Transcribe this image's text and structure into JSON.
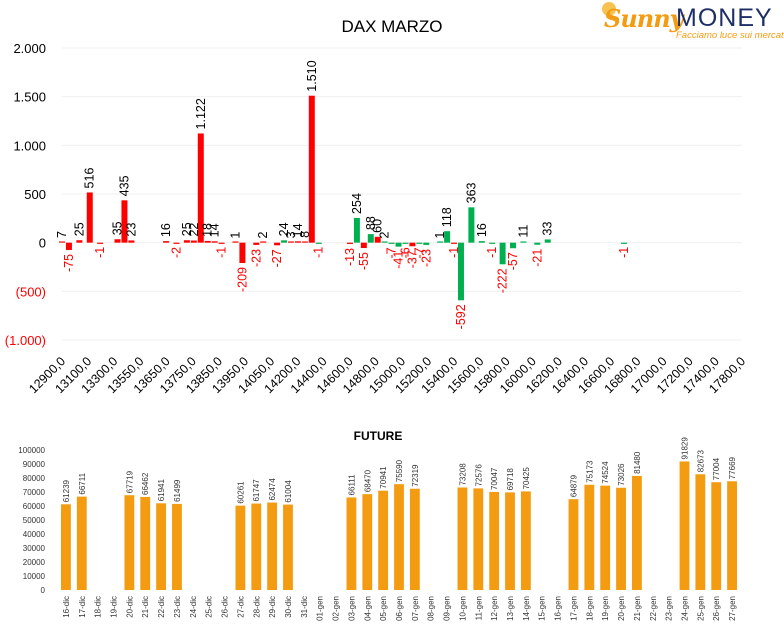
{
  "logo": {
    "sunny": "Sunny",
    "money": "MONEY",
    "tagline": "Facciamo luce sui mercati"
  },
  "colors": {
    "positive": "#00b050",
    "negative": "#ff0000",
    "future_bar": "#f39c12",
    "axis_text": "#000000"
  },
  "chart_data": [
    {
      "type": "bar",
      "title": "DAX MARZO",
      "xlabel": "",
      "ylabel": "",
      "ylim": [
        -1000,
        2000
      ],
      "yticks": [
        2000,
        1500,
        1000,
        500,
        0,
        -500,
        -1000
      ],
      "ytick_labels": [
        "2.000",
        "1.500",
        "1.000",
        "500",
        "0",
        "(500)",
        "(1.000)"
      ],
      "grid": true,
      "x_tick_labels": [
        "12900,0",
        "13100,0",
        "13300,0",
        "13550,0",
        "13650,0",
        "13750,0",
        "13850,0",
        "13950,0",
        "14050,0",
        "14200,0",
        "14400,0",
        "14600,0",
        "14800,0",
        "15000,0",
        "15200,0",
        "15400,0",
        "15600,0",
        "15800,0",
        "16000,0",
        "16200,0",
        "16400,0",
        "16600,0",
        "16800,0",
        "17000,0",
        "17200,0",
        "17400,0",
        "17800,0"
      ],
      "x_min": 12900,
      "x_max": 17800,
      "series": [
        {
          "values": [
            {
              "x": 12900,
              "v": 7,
              "c": "red"
            },
            {
              "x": 12950,
              "v": -75,
              "c": "red"
            },
            {
              "x": 13025,
              "v": 25,
              "c": "red"
            },
            {
              "x": 13100,
              "v": 516,
              "c": "red"
            },
            {
              "x": 13175,
              "v": -1,
              "c": "red"
            },
            {
              "x": 13300,
              "v": 35,
              "c": "red"
            },
            {
              "x": 13350,
              "v": 435,
              "c": "red"
            },
            {
              "x": 13400,
              "v": 23,
              "c": "red"
            },
            {
              "x": 13650,
              "v": 16,
              "c": "red"
            },
            {
              "x": 13725,
              "v": -2,
              "c": "red"
            },
            {
              "x": 13800,
              "v": 25,
              "c": "red"
            },
            {
              "x": 13850,
              "v": 22,
              "c": "red"
            },
            {
              "x": 13900,
              "v": 1122,
              "c": "red"
            },
            {
              "x": 13950,
              "v": 18,
              "c": "red"
            },
            {
              "x": 14000,
              "v": 14,
              "c": "red"
            },
            {
              "x": 14050,
              "v": -1,
              "c": "red"
            },
            {
              "x": 14150,
              "v": 1,
              "c": "red"
            },
            {
              "x": 14200,
              "v": -209,
              "c": "red"
            },
            {
              "x": 14300,
              "v": -23,
              "c": "red"
            },
            {
              "x": 14350,
              "v": 2,
              "c": "red"
            },
            {
              "x": 14450,
              "v": -27,
              "c": "red"
            },
            {
              "x": 14500,
              "v": 24,
              "c": "green"
            },
            {
              "x": 14550,
              "v": 3,
              "c": "red"
            },
            {
              "x": 14600,
              "v": 14,
              "c": "red"
            },
            {
              "x": 14650,
              "v": 8,
              "c": "red"
            },
            {
              "x": 14700,
              "v": 1510,
              "c": "red"
            },
            {
              "x": 14750,
              "v": -1,
              "c": "green"
            },
            {
              "x": 14975,
              "v": -13,
              "c": "red"
            },
            {
              "x": 15025,
              "v": 254,
              "c": "green"
            },
            {
              "x": 15075,
              "v": -55,
              "c": "red"
            },
            {
              "x": 15125,
              "v": 88,
              "c": "green"
            },
            {
              "x": 15175,
              "v": 60,
              "c": "red"
            },
            {
              "x": 15225,
              "v": 2,
              "c": "green"
            },
            {
              "x": 15275,
              "v": -7,
              "c": "green"
            },
            {
              "x": 15325,
              "v": -41,
              "c": "green"
            },
            {
              "x": 15375,
              "v": -6,
              "c": "green"
            },
            {
              "x": 15425,
              "v": -37,
              "c": "red"
            },
            {
              "x": 15475,
              "v": -7,
              "c": "green"
            },
            {
              "x": 15525,
              "v": -23,
              "c": "green"
            },
            {
              "x": 15625,
              "v": 1,
              "c": "green"
            },
            {
              "x": 15675,
              "v": 118,
              "c": "green"
            },
            {
              "x": 15725,
              "v": -1,
              "c": "red"
            },
            {
              "x": 15775,
              "v": -592,
              "c": "green"
            },
            {
              "x": 15850,
              "v": 363,
              "c": "green"
            },
            {
              "x": 15925,
              "v": 16,
              "c": "green"
            },
            {
              "x": 16000,
              "v": -1,
              "c": "green"
            },
            {
              "x": 16075,
              "v": -222,
              "c": "green"
            },
            {
              "x": 16150,
              "v": -57,
              "c": "green"
            },
            {
              "x": 16225,
              "v": 11,
              "c": "green"
            },
            {
              "x": 16325,
              "v": -21,
              "c": "green"
            },
            {
              "x": 16400,
              "v": 33,
              "c": "green"
            },
            {
              "x": 16950,
              "v": -1,
              "c": "green"
            }
          ]
        }
      ],
      "data_labels": [
        {
          "x": 12900,
          "text": "7",
          "pos": "up",
          "col": "black"
        },
        {
          "x": 12950,
          "text": "-75",
          "pos": "down",
          "col": "red"
        },
        {
          "x": 13025,
          "text": "25",
          "pos": "up",
          "col": "black"
        },
        {
          "x": 13100,
          "text": "516",
          "pos": "up",
          "col": "black"
        },
        {
          "x": 13175,
          "text": "-1",
          "pos": "down",
          "col": "red"
        },
        {
          "x": 13300,
          "text": "35",
          "pos": "up",
          "col": "black"
        },
        {
          "x": 13350,
          "text": "435",
          "pos": "up",
          "col": "black"
        },
        {
          "x": 13400,
          "text": "23",
          "pos": "up",
          "col": "black"
        },
        {
          "x": 13650,
          "text": "16",
          "pos": "up",
          "col": "black"
        },
        {
          "x": 13725,
          "text": "-2",
          "pos": "down",
          "col": "red"
        },
        {
          "x": 13800,
          "text": "25",
          "pos": "up",
          "col": "black"
        },
        {
          "x": 13850,
          "text": "22",
          "pos": "up",
          "col": "black"
        },
        {
          "x": 13900,
          "text": "1.122",
          "pos": "up",
          "col": "black"
        },
        {
          "x": 13950,
          "text": "18",
          "pos": "up",
          "col": "black"
        },
        {
          "x": 14000,
          "text": "14",
          "pos": "up",
          "col": "black"
        },
        {
          "x": 14050,
          "text": "-1",
          "pos": "down",
          "col": "red"
        },
        {
          "x": 14150,
          "text": "1",
          "pos": "up",
          "col": "black"
        },
        {
          "x": 14200,
          "text": "-209",
          "pos": "down",
          "col": "red"
        },
        {
          "x": 14300,
          "text": "-23",
          "pos": "down",
          "col": "red"
        },
        {
          "x": 14350,
          "text": "2",
          "pos": "up",
          "col": "black"
        },
        {
          "x": 14450,
          "text": "-27",
          "pos": "down",
          "col": "red"
        },
        {
          "x": 14500,
          "text": "24",
          "pos": "up",
          "col": "black"
        },
        {
          "x": 14550,
          "text": "3",
          "pos": "up",
          "col": "black"
        },
        {
          "x": 14600,
          "text": "14",
          "pos": "up",
          "col": "black"
        },
        {
          "x": 14650,
          "text": "8",
          "pos": "up",
          "col": "black"
        },
        {
          "x": 14700,
          "text": "1.510",
          "pos": "up",
          "col": "black"
        },
        {
          "x": 14750,
          "text": "-1",
          "pos": "down",
          "col": "red"
        },
        {
          "x": 14975,
          "text": "-13",
          "pos": "down",
          "col": "red"
        },
        {
          "x": 15025,
          "text": "254",
          "pos": "up",
          "col": "black"
        },
        {
          "x": 15075,
          "text": "-55",
          "pos": "down",
          "col": "red"
        },
        {
          "x": 15125,
          "text": "88",
          "pos": "up",
          "col": "black"
        },
        {
          "x": 15175,
          "text": "60",
          "pos": "up",
          "col": "black"
        },
        {
          "x": 15225,
          "text": "2",
          "pos": "up",
          "col": "black"
        },
        {
          "x": 15275,
          "text": "-7",
          "pos": "down",
          "col": "red"
        },
        {
          "x": 15325,
          "text": "-41",
          "pos": "down",
          "col": "red"
        },
        {
          "x": 15375,
          "text": "-6",
          "pos": "down",
          "col": "red"
        },
        {
          "x": 15425,
          "text": "-37",
          "pos": "down",
          "col": "red"
        },
        {
          "x": 15475,
          "text": "-7",
          "pos": "down",
          "col": "red"
        },
        {
          "x": 15525,
          "text": "-23",
          "pos": "down",
          "col": "red"
        },
        {
          "x": 15625,
          "text": "1",
          "pos": "up",
          "col": "black"
        },
        {
          "x": 15675,
          "text": "118",
          "pos": "up",
          "col": "black"
        },
        {
          "x": 15725,
          "text": "-1",
          "pos": "down",
          "col": "red"
        },
        {
          "x": 15775,
          "text": "-592",
          "pos": "down",
          "col": "red"
        },
        {
          "x": 15850,
          "text": "363",
          "pos": "up",
          "col": "black"
        },
        {
          "x": 15925,
          "text": "16",
          "pos": "up",
          "col": "black"
        },
        {
          "x": 16000,
          "text": "-1",
          "pos": "down",
          "col": "red"
        },
        {
          "x": 16075,
          "text": "-222",
          "pos": "down",
          "col": "red"
        },
        {
          "x": 16150,
          "text": "-57",
          "pos": "down",
          "col": "red"
        },
        {
          "x": 16225,
          "text": "11",
          "pos": "up",
          "col": "black"
        },
        {
          "x": 16325,
          "text": "-21",
          "pos": "down",
          "col": "red"
        },
        {
          "x": 16400,
          "text": "33",
          "pos": "up",
          "col": "black"
        },
        {
          "x": 16950,
          "text": "-1",
          "pos": "down",
          "col": "red"
        }
      ]
    },
    {
      "type": "bar",
      "title": "FUTURE",
      "xlabel": "",
      "ylabel": "",
      "ylim": [
        0,
        100000
      ],
      "yticks": [
        100000,
        90000,
        80000,
        70000,
        60000,
        50000,
        40000,
        30000,
        20000,
        10000,
        0
      ],
      "grid": false,
      "categories": [
        "16-dic",
        "17-dic",
        "18-dic",
        "19-dic",
        "20-dic",
        "21-dic",
        "22-dic",
        "23-dic",
        "24-dic",
        "25-dic",
        "26-dic",
        "27-dic",
        "28-dic",
        "29-dic",
        "30-dic",
        "31-dic",
        "01-gen",
        "02-gen",
        "03-gen",
        "04-gen",
        "05-gen",
        "06-gen",
        "07-gen",
        "08-gen",
        "09-gen",
        "10-gen",
        "11-gen",
        "12-gen",
        "13-gen",
        "14-gen",
        "15-gen",
        "16-gen",
        "17-gen",
        "18-gen",
        "19-gen",
        "20-gen",
        "21-gen",
        "22-gen",
        "23-gen",
        "24-gen",
        "25-gen",
        "26-gen",
        "27-gen"
      ],
      "values": [
        61239,
        66711,
        null,
        null,
        67719,
        66462,
        61941,
        61499,
        null,
        null,
        null,
        60261,
        61747,
        62474,
        61004,
        null,
        null,
        null,
        66111,
        68470,
        70941,
        75590,
        72319,
        null,
        null,
        73208,
        72576,
        70047,
        69718,
        70425,
        null,
        null,
        64879,
        75173,
        74524,
        73026,
        81480,
        null,
        null,
        91829,
        82673,
        77004,
        77669
      ]
    }
  ]
}
